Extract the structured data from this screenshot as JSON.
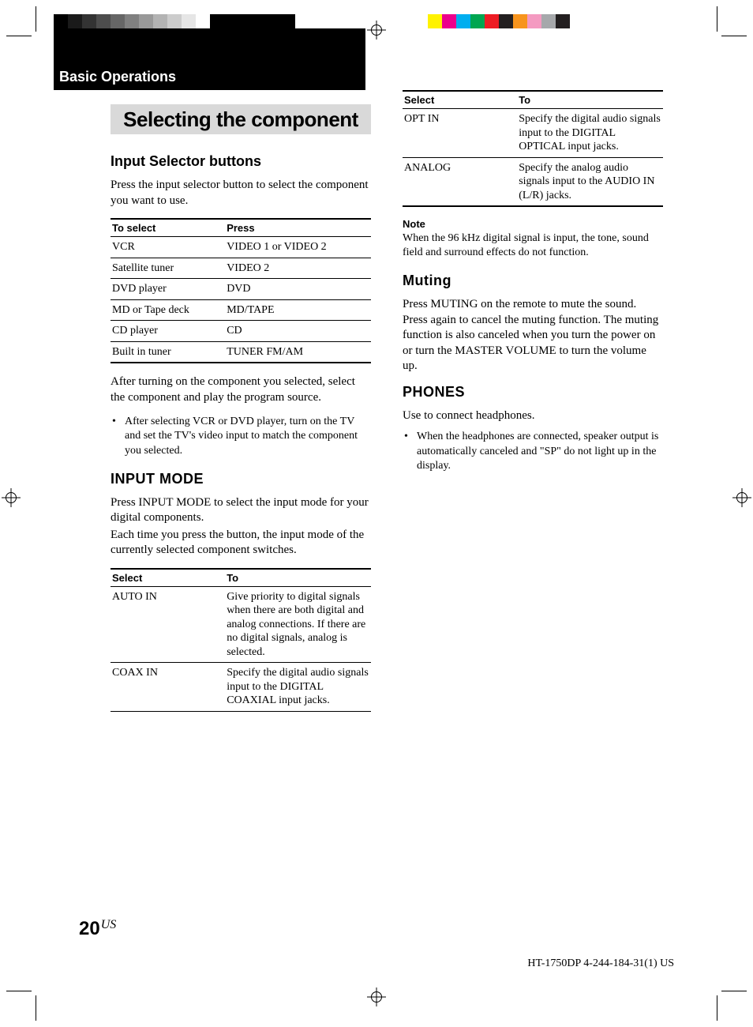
{
  "printer_marks": {
    "colorbar_left_colors": [
      "#000000",
      "#1a1a1a",
      "#333333",
      "#4d4d4d",
      "#666666",
      "#808080",
      "#999999",
      "#b3b3b3",
      "#cccccc",
      "#e6e6e6",
      "#ffffff",
      "#000000",
      "#000000",
      "#000000",
      "#000000",
      "#000000",
      "#000000",
      "#ffffff"
    ],
    "colorbar_right_colors": [
      "#ffffff",
      "#fff200",
      "#ec008c",
      "#00aeef",
      "#00a651",
      "#ed1c24",
      "#231f20",
      "#f7941d",
      "#f49ac1",
      "#a6a8ab",
      "#231f20"
    ]
  },
  "header": {
    "section_tab": "Basic Operations"
  },
  "left_column": {
    "title": "Selecting the component",
    "h_input_selector": "Input Selector buttons",
    "p_input_selector": "Press the input selector button to select the component you want to use.",
    "table_selector": {
      "head_a": "To select",
      "head_b": "Press",
      "rows": [
        {
          "a": "VCR",
          "b": "VIDEO 1 or VIDEO 2"
        },
        {
          "a": "Satellite tuner",
          "b": "VIDEO 2"
        },
        {
          "a": "DVD player",
          "b": "DVD"
        },
        {
          "a": "MD or Tape deck",
          "b": "MD/TAPE"
        },
        {
          "a": "CD player",
          "b": "CD"
        },
        {
          "a": "Built in tuner",
          "b": "TUNER FM/AM"
        }
      ]
    },
    "p_after_table": "After turning on the component you selected, select the component and play the program source.",
    "bullet1": "After selecting VCR or DVD player, turn on the TV and set the TV's video input to match the component you selected.",
    "h_input_mode": "INPUT MODE",
    "p_input_mode_1": "Press INPUT MODE to select the input mode for your digital components.",
    "p_input_mode_2": "Each time you press the button, the input mode of the currently selected component switches.",
    "table_mode": {
      "head_a": "Select",
      "head_b": "To",
      "rows": [
        {
          "a": "AUTO IN",
          "b": "Give priority to digital signals when there are both digital and analog connections. If there are no digital signals, analog is selected."
        },
        {
          "a": "COAX IN",
          "b": "Specify the digital audio signals input to the DIGITAL COAXIAL input jacks."
        }
      ]
    }
  },
  "right_column": {
    "table_mode2": {
      "head_a": "Select",
      "head_b": "To",
      "rows": [
        {
          "a": "OPT IN",
          "b": "Specify the digital audio signals input to the DIGITAL OPTICAL input jacks."
        },
        {
          "a": "ANALOG",
          "b": "Specify the analog audio signals input to the AUDIO IN (L/R) jacks."
        }
      ]
    },
    "note_label": "Note",
    "note_text": "When the 96 kHz digital signal is input, the tone, sound field and surround effects do not function.",
    "h_muting": "Muting",
    "p_muting": "Press MUTING on the remote to mute the sound. Press again to cancel the muting function. The muting function is also canceled when you turn the power on or turn the MASTER VOLUME to turn the volume up.",
    "h_phones": "PHONES",
    "p_phones": "Use to connect headphones.",
    "bullet_phones": "When the headphones are connected, speaker output is automatically canceled and \"SP\" do not light up in the display."
  },
  "footer": {
    "page_number": "20",
    "page_region": "US",
    "doc_ref": "HT-1750DP   4-244-184-31(1) US"
  }
}
